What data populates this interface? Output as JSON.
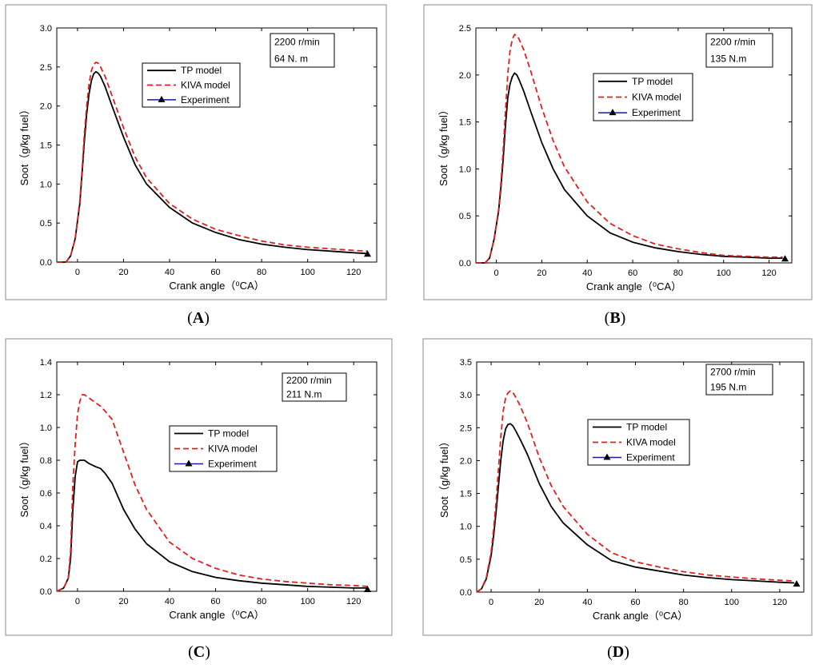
{
  "common": {
    "xlabel": "Crank angle（⁰CA）",
    "ylabel": "Soot（g/kg fuel）",
    "legend": [
      "TP model",
      "KIVA model",
      "Experiment"
    ],
    "colors": {
      "tp": "#000000",
      "kiva": "#e02020",
      "experiment": "#1a1aa0",
      "frame": "#888888"
    }
  },
  "chart_data": [
    {
      "type": "line",
      "panel": "(A)",
      "condition": [
        "2200 r/min",
        "64 N. m"
      ],
      "xlim": [
        -9,
        130
      ],
      "ylim": [
        0,
        3.0
      ],
      "xticks": [
        0,
        20,
        40,
        60,
        80,
        100,
        120
      ],
      "yticks": [
        "0.0",
        "0.5",
        "1.0",
        "1.5",
        "2.0",
        "2.5",
        "3.0"
      ],
      "series": [
        {
          "name": "TP model",
          "x": [
            -9,
            -5,
            -3,
            -1,
            1,
            2,
            3,
            4,
            5,
            6,
            7,
            8,
            9,
            10,
            12,
            15,
            20,
            25,
            30,
            40,
            50,
            60,
            70,
            80,
            90,
            100,
            110,
            120,
            126
          ],
          "y": [
            0,
            0,
            0.08,
            0.3,
            0.75,
            1.15,
            1.55,
            1.9,
            2.15,
            2.32,
            2.41,
            2.44,
            2.42,
            2.38,
            2.25,
            2.0,
            1.6,
            1.25,
            1.0,
            0.7,
            0.5,
            0.38,
            0.29,
            0.23,
            0.19,
            0.16,
            0.14,
            0.12,
            0.11
          ]
        },
        {
          "name": "KIVA model",
          "x": [
            -9,
            -5,
            -3,
            -1,
            1,
            2,
            3,
            4,
            5,
            6,
            7,
            8,
            9,
            10,
            12,
            15,
            20,
            25,
            30,
            40,
            50,
            60,
            70,
            80,
            90,
            100,
            110,
            120,
            126
          ],
          "y": [
            0,
            0,
            0.08,
            0.3,
            0.78,
            1.2,
            1.65,
            2.0,
            2.28,
            2.45,
            2.53,
            2.56,
            2.55,
            2.5,
            2.38,
            2.13,
            1.72,
            1.35,
            1.08,
            0.75,
            0.55,
            0.42,
            0.34,
            0.27,
            0.22,
            0.19,
            0.17,
            0.15,
            0.14
          ]
        }
      ],
      "experiment": {
        "x": [
          126
        ],
        "y": [
          0.1
        ]
      }
    },
    {
      "type": "line",
      "panel": "(B)",
      "condition": [
        "2200 r/min",
        "135 N.m"
      ],
      "xlim": [
        -9,
        130
      ],
      "ylim": [
        0,
        2.5
      ],
      "xticks": [
        0,
        20,
        40,
        60,
        80,
        100,
        120
      ],
      "yticks": [
        "0.0",
        "0.5",
        "1.0",
        "1.5",
        "2.0",
        "2.5"
      ],
      "series": [
        {
          "name": "TP model",
          "x": [
            -9,
            -5,
            -3,
            -1,
            1,
            2,
            3,
            4,
            5,
            6,
            7,
            8,
            9,
            10,
            12,
            15,
            20,
            25,
            30,
            40,
            50,
            60,
            70,
            80,
            90,
            100,
            110,
            120,
            126
          ],
          "y": [
            0,
            0,
            0.05,
            0.25,
            0.55,
            0.8,
            1.1,
            1.45,
            1.75,
            1.9,
            1.98,
            2.02,
            2.0,
            1.95,
            1.83,
            1.62,
            1.28,
            1.0,
            0.78,
            0.5,
            0.32,
            0.22,
            0.16,
            0.12,
            0.09,
            0.07,
            0.06,
            0.05,
            0.05
          ]
        },
        {
          "name": "KIVA model",
          "x": [
            -9,
            -5,
            -3,
            -1,
            1,
            2,
            3,
            4,
            5,
            6,
            7,
            8,
            9,
            10,
            12,
            15,
            20,
            25,
            30,
            40,
            50,
            60,
            70,
            80,
            90,
            100,
            110,
            120,
            126
          ],
          "y": [
            0,
            0,
            0.05,
            0.25,
            0.57,
            0.85,
            1.2,
            1.6,
            2.0,
            2.25,
            2.38,
            2.43,
            2.42,
            2.38,
            2.27,
            2.05,
            1.65,
            1.3,
            1.02,
            0.65,
            0.42,
            0.29,
            0.2,
            0.15,
            0.11,
            0.08,
            0.07,
            0.06,
            0.06
          ]
        }
      ],
      "experiment": {
        "x": [
          127
        ],
        "y": [
          0.04
        ]
      }
    },
    {
      "type": "line",
      "panel": "(C)",
      "condition": [
        "2200 r/min",
        "211 N.m"
      ],
      "xlim": [
        -9,
        130
      ],
      "ylim": [
        0,
        1.4
      ],
      "xticks": [
        0,
        20,
        40,
        60,
        80,
        100,
        120
      ],
      "yticks": [
        "0.0",
        "0.2",
        "0.4",
        "0.6",
        "0.8",
        "1.0",
        "1.2",
        "1.4"
      ],
      "series": [
        {
          "name": "TP model",
          "x": [
            -9,
            -6,
            -4,
            -3,
            -2,
            -1,
            0,
            1,
            2,
            3,
            5,
            8,
            10,
            12,
            15,
            20,
            25,
            30,
            40,
            50,
            60,
            70,
            80,
            90,
            100,
            110,
            120,
            126
          ],
          "y": [
            0,
            0.02,
            0.08,
            0.2,
            0.5,
            0.7,
            0.79,
            0.8,
            0.8,
            0.8,
            0.78,
            0.76,
            0.75,
            0.72,
            0.66,
            0.5,
            0.38,
            0.29,
            0.18,
            0.12,
            0.085,
            0.065,
            0.05,
            0.04,
            0.03,
            0.025,
            0.02,
            0.02
          ]
        },
        {
          "name": "KIVA model",
          "x": [
            -9,
            -6,
            -4,
            -3,
            -2,
            -1,
            0,
            1,
            2,
            3,
            5,
            8,
            10,
            12,
            15,
            20,
            25,
            30,
            40,
            50,
            60,
            70,
            80,
            90,
            100,
            110,
            120,
            126
          ],
          "y": [
            0,
            0.02,
            0.08,
            0.25,
            0.65,
            0.9,
            1.08,
            1.16,
            1.2,
            1.2,
            1.18,
            1.15,
            1.13,
            1.1,
            1.05,
            0.85,
            0.65,
            0.5,
            0.3,
            0.2,
            0.14,
            0.1,
            0.075,
            0.06,
            0.05,
            0.04,
            0.035,
            0.03
          ]
        }
      ],
      "experiment": {
        "x": [
          126
        ],
        "y": [
          0.01
        ]
      }
    },
    {
      "type": "line",
      "panel": "(D)",
      "condition": [
        "2700 r/min",
        "195 N.m"
      ],
      "xlim": [
        -6,
        130
      ],
      "ylim": [
        0,
        3.5
      ],
      "xticks": [
        0,
        20,
        40,
        60,
        80,
        100,
        120
      ],
      "yticks": [
        "0.0",
        "0.5",
        "1.0",
        "1.5",
        "2.0",
        "2.5",
        "3.0",
        "3.5"
      ],
      "series": [
        {
          "name": "TP model",
          "x": [
            -6,
            -4,
            -2,
            0,
            1,
            2,
            3,
            4,
            5,
            6,
            7,
            8,
            9,
            10,
            12,
            15,
            20,
            25,
            30,
            40,
            50,
            60,
            65,
            70,
            80,
            90,
            100,
            110,
            120,
            126
          ],
          "y": [
            0,
            0.05,
            0.2,
            0.55,
            0.85,
            1.2,
            1.6,
            2.0,
            2.3,
            2.48,
            2.55,
            2.56,
            2.53,
            2.47,
            2.33,
            2.1,
            1.65,
            1.3,
            1.05,
            0.72,
            0.48,
            0.38,
            0.35,
            0.32,
            0.26,
            0.22,
            0.19,
            0.17,
            0.15,
            0.14
          ]
        },
        {
          "name": "KIVA model",
          "x": [
            -6,
            -4,
            -2,
            0,
            1,
            2,
            3,
            4,
            5,
            6,
            7,
            8,
            9,
            10,
            12,
            15,
            20,
            25,
            30,
            40,
            50,
            60,
            65,
            70,
            80,
            90,
            100,
            110,
            120,
            126
          ],
          "y": [
            0,
            0.05,
            0.22,
            0.6,
            0.95,
            1.35,
            1.85,
            2.35,
            2.75,
            2.95,
            3.03,
            3.06,
            3.04,
            2.98,
            2.84,
            2.58,
            2.05,
            1.62,
            1.3,
            0.88,
            0.6,
            0.46,
            0.42,
            0.38,
            0.31,
            0.26,
            0.23,
            0.2,
            0.18,
            0.17
          ]
        }
      ],
      "experiment": {
        "x": [
          127
        ],
        "y": [
          0.12
        ]
      }
    }
  ]
}
